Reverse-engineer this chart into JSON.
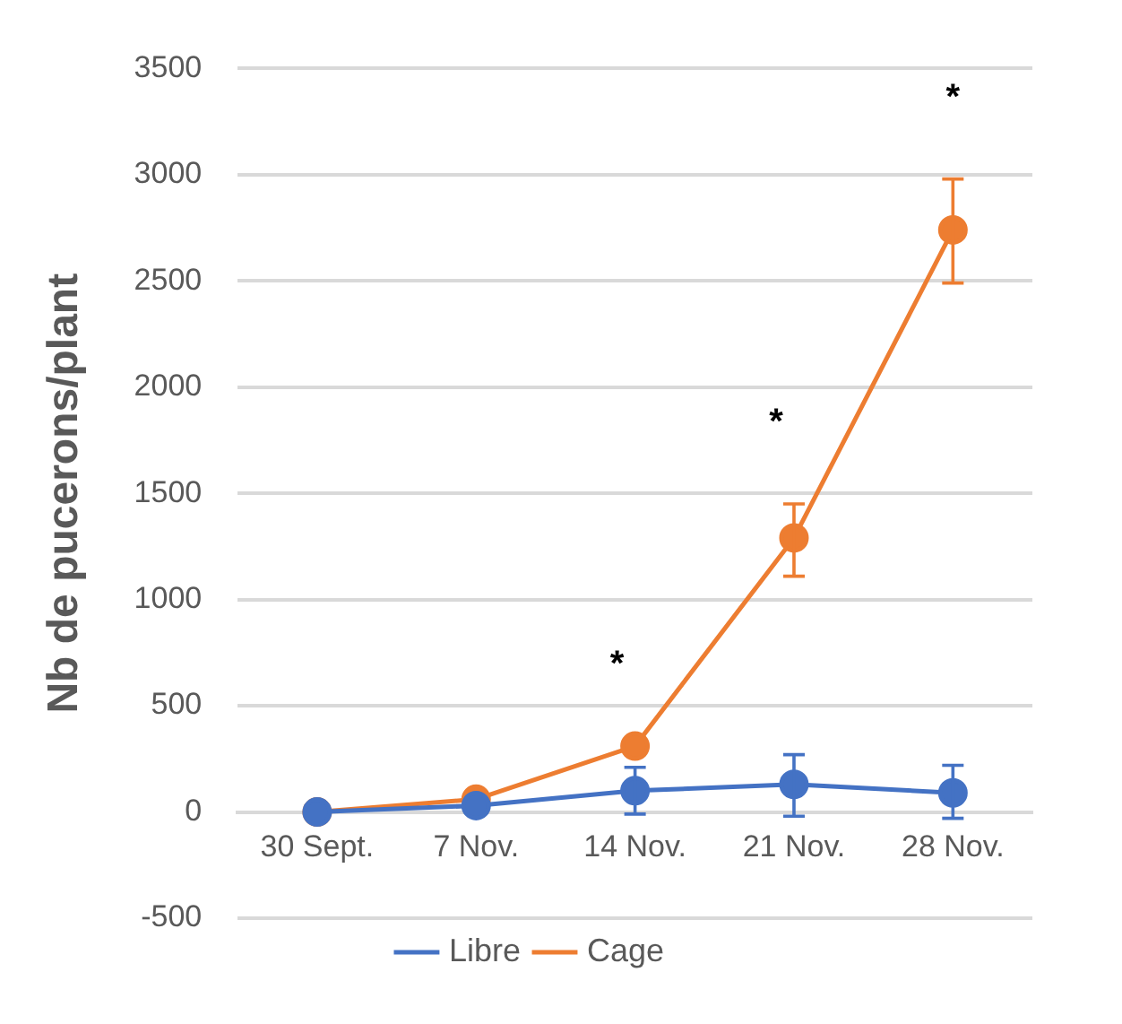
{
  "chart_data": {
    "type": "line",
    "ylabel": "Nb de pucerons/plant",
    "categories": [
      "30 Sept.",
      "7 Nov.",
      "14 Nov.",
      "21 Nov.",
      "28 Nov."
    ],
    "series": [
      {
        "name": "Libre",
        "color": "#4472c4",
        "values": [
          0,
          30,
          100,
          130,
          90
        ],
        "errors": [
          null,
          null,
          [
            -10,
            210
          ],
          [
            -20,
            270
          ],
          [
            -30,
            220
          ]
        ]
      },
      {
        "name": "Cage",
        "color": "#ed7d31",
        "values": [
          0,
          60,
          310,
          1290,
          2740
        ],
        "errors": [
          null,
          null,
          null,
          [
            1110,
            1450
          ],
          [
            2490,
            2980
          ]
        ]
      }
    ],
    "ylim": [
      -500,
      3500
    ],
    "yticks": [
      -500,
      0,
      500,
      1000,
      1500,
      2000,
      2500,
      3000,
      3500
    ],
    "grid": "y",
    "legend": "bottom",
    "marker": "circle",
    "line_style": "solid",
    "annotations": [
      "*",
      "*",
      "*"
    ]
  }
}
